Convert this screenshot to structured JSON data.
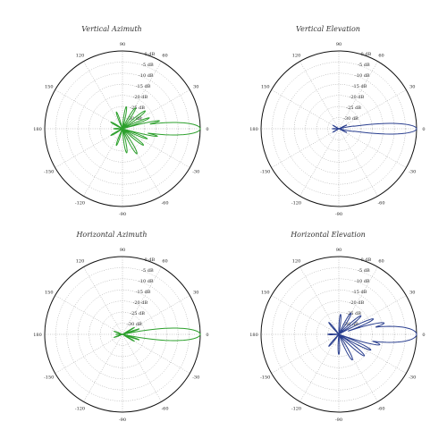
{
  "chart_data": [
    {
      "type": "polar",
      "title": "Vertical Azimuth",
      "color": "#2ca02c",
      "radial_range_db": [
        -35,
        0
      ],
      "radial_ticks": [
        {
          "v": 0,
          "label": "0 dB"
        },
        {
          "v": -5,
          "label": "-5 dB"
        },
        {
          "v": -10,
          "label": "-10 dB"
        },
        {
          "v": -15,
          "label": "-15 dB"
        },
        {
          "v": -20,
          "label": "-20 dB"
        },
        {
          "v": -25,
          "label": "-25 dB"
        },
        {
          "v": -30,
          "label": "-30 dB"
        }
      ],
      "angle_ticks": [
        {
          "v": 90,
          "label": "90"
        },
        {
          "v": 60,
          "label": "60"
        },
        {
          "v": 30,
          "label": "30"
        },
        {
          "v": 0,
          "label": "0"
        },
        {
          "v": -30,
          "label": "-30"
        },
        {
          "v": -60,
          "label": "-60"
        },
        {
          "v": -90,
          "label": "-90"
        },
        {
          "v": -120,
          "label": "-120"
        },
        {
          "v": -150,
          "label": "-150"
        },
        {
          "v": 180,
          "label": "180"
        },
        {
          "v": 150,
          "label": "150"
        },
        {
          "v": 120,
          "label": "120"
        }
      ],
      "main_beam": {
        "peak_db": 0,
        "beamwidth_deg": 7
      },
      "lobes": [
        {
          "angle": 12,
          "width": 3,
          "db": -18
        },
        {
          "angle": -12,
          "width": 3,
          "db": -19
        },
        {
          "angle": 22,
          "width": 4,
          "db": -22
        },
        {
          "angle": -22,
          "width": 4,
          "db": -23
        },
        {
          "angle": 38,
          "width": 5,
          "db": -22
        },
        {
          "angle": -38,
          "width": 5,
          "db": -23
        },
        {
          "angle": 58,
          "width": 6,
          "db": -24
        },
        {
          "angle": -60,
          "width": 6,
          "db": -22
        },
        {
          "angle": 80,
          "width": 6,
          "db": -25
        },
        {
          "angle": -80,
          "width": 6,
          "db": -24
        },
        {
          "angle": 110,
          "width": 6,
          "db": -27
        },
        {
          "angle": -110,
          "width": 6,
          "db": -27
        },
        {
          "angle": 150,
          "width": 7,
          "db": -29
        },
        {
          "angle": -150,
          "width": 7,
          "db": -29
        },
        {
          "angle": 180,
          "width": 8,
          "db": -31
        }
      ]
    },
    {
      "type": "polar",
      "title": "Vertical Elevation",
      "color": "#2a3f8f",
      "radial_range_db": [
        -35,
        0
      ],
      "radial_ticks": [
        {
          "v": 0,
          "label": "0 dB"
        },
        {
          "v": -5,
          "label": "-5 dB"
        },
        {
          "v": -10,
          "label": "-10 dB"
        },
        {
          "v": -15,
          "label": "-15 dB"
        },
        {
          "v": -20,
          "label": "-20 dB"
        },
        {
          "v": -25,
          "label": "-25 dB"
        },
        {
          "v": -30,
          "label": "-30 dB"
        }
      ],
      "angle_ticks": [
        {
          "v": 90,
          "label": "90"
        },
        {
          "v": 60,
          "label": "60"
        },
        {
          "v": 30,
          "label": "30"
        },
        {
          "v": 0,
          "label": "0"
        },
        {
          "v": -30,
          "label": "-30"
        },
        {
          "v": -60,
          "label": "-60"
        },
        {
          "v": -90,
          "label": "-90"
        },
        {
          "v": -120,
          "label": "-120"
        },
        {
          "v": -150,
          "label": "-150"
        },
        {
          "v": 180,
          "label": "180"
        },
        {
          "v": 150,
          "label": "150"
        },
        {
          "v": 120,
          "label": "120"
        }
      ],
      "main_beam": {
        "peak_db": 0,
        "beamwidth_deg": 6
      },
      "lobes": [
        {
          "angle": 10,
          "width": 3,
          "db": -28
        },
        {
          "angle": -10,
          "width": 3,
          "db": -28
        },
        {
          "angle": 25,
          "width": 4,
          "db": -31
        },
        {
          "angle": -25,
          "width": 4,
          "db": -31
        },
        {
          "angle": 150,
          "width": 6,
          "db": -32
        },
        {
          "angle": -150,
          "width": 6,
          "db": -32
        },
        {
          "angle": 180,
          "width": 8,
          "db": -32
        }
      ]
    },
    {
      "type": "polar",
      "title": "Horizontal Azimuth",
      "color": "#2ca02c",
      "radial_range_db": [
        -35,
        0
      ],
      "radial_ticks": [
        {
          "v": 0,
          "label": "0 dB"
        },
        {
          "v": -5,
          "label": "-5 dB"
        },
        {
          "v": -10,
          "label": "-10 dB"
        },
        {
          "v": -15,
          "label": "-15 dB"
        },
        {
          "v": -20,
          "label": "-20 dB"
        },
        {
          "v": -25,
          "label": "-25 dB"
        },
        {
          "v": -30,
          "label": "-30 dB"
        }
      ],
      "angle_ticks": [
        {
          "v": 90,
          "label": "90"
        },
        {
          "v": 60,
          "label": "60"
        },
        {
          "v": 30,
          "label": "30"
        },
        {
          "v": 0,
          "label": "0"
        },
        {
          "v": -30,
          "label": "-30"
        },
        {
          "v": -60,
          "label": "-60"
        },
        {
          "v": -90,
          "label": "-90"
        },
        {
          "v": -120,
          "label": "-120"
        },
        {
          "v": -150,
          "label": "-150"
        },
        {
          "v": 180,
          "label": "180"
        },
        {
          "v": 150,
          "label": "150"
        },
        {
          "v": 120,
          "label": "120"
        }
      ],
      "main_beam": {
        "peak_db": 0,
        "beamwidth_deg": 7
      },
      "lobes": [
        {
          "angle": 8,
          "width": 3,
          "db": -24
        },
        {
          "angle": -8,
          "width": 3,
          "db": -25
        },
        {
          "angle": 18,
          "width": 3,
          "db": -27
        },
        {
          "angle": -18,
          "width": 3,
          "db": -27
        },
        {
          "angle": 30,
          "width": 4,
          "db": -29
        },
        {
          "angle": -30,
          "width": 4,
          "db": -29
        },
        {
          "angle": 160,
          "width": 6,
          "db": -31
        },
        {
          "angle": -160,
          "width": 6,
          "db": -31
        },
        {
          "angle": 180,
          "width": 6,
          "db": -32
        }
      ]
    },
    {
      "type": "polar",
      "title": "Horizontal Elevation",
      "color": "#2a3f8f",
      "radial_range_db": [
        -35,
        0
      ],
      "radial_ticks": [
        {
          "v": 0,
          "label": "0 dB"
        },
        {
          "v": -5,
          "label": "-5 dB"
        },
        {
          "v": -10,
          "label": "-10 dB"
        },
        {
          "v": -15,
          "label": "-15 dB"
        },
        {
          "v": -20,
          "label": "-20 dB"
        },
        {
          "v": -25,
          "label": "-25 dB"
        },
        {
          "v": -30,
          "label": "-30 dB"
        }
      ],
      "angle_ticks": [
        {
          "v": 90,
          "label": "90"
        },
        {
          "v": 60,
          "label": "60"
        },
        {
          "v": 30,
          "label": "30"
        },
        {
          "v": 0,
          "label": "0"
        },
        {
          "v": -30,
          "label": "-30"
        },
        {
          "v": -60,
          "label": "-60"
        },
        {
          "v": -90,
          "label": "-90"
        },
        {
          "v": -120,
          "label": "-120"
        },
        {
          "v": -150,
          "label": "-150"
        },
        {
          "v": 180,
          "label": "180"
        },
        {
          "v": 150,
          "label": "150"
        },
        {
          "v": 120,
          "label": "120"
        }
      ],
      "main_beam": {
        "peak_db": 0,
        "beamwidth_deg": 9
      },
      "lobes": [
        {
          "angle": 14,
          "width": 4,
          "db": -14
        },
        {
          "angle": -14,
          "width": 4,
          "db": -16
        },
        {
          "angle": 24,
          "width": 4,
          "db": -18
        },
        {
          "angle": -26,
          "width": 4,
          "db": -19
        },
        {
          "angle": 40,
          "width": 5,
          "db": -22
        },
        {
          "angle": -40,
          "width": 5,
          "db": -20
        },
        {
          "angle": 60,
          "width": 6,
          "db": -24
        },
        {
          "angle": -62,
          "width": 6,
          "db": -22
        },
        {
          "angle": 85,
          "width": 6,
          "db": -26
        },
        {
          "angle": -90,
          "width": 6,
          "db": -26
        },
        {
          "angle": 130,
          "width": 6,
          "db": -28
        },
        {
          "angle": -130,
          "width": 6,
          "db": -28
        },
        {
          "angle": 180,
          "width": 8,
          "db": -30
        }
      ]
    }
  ]
}
